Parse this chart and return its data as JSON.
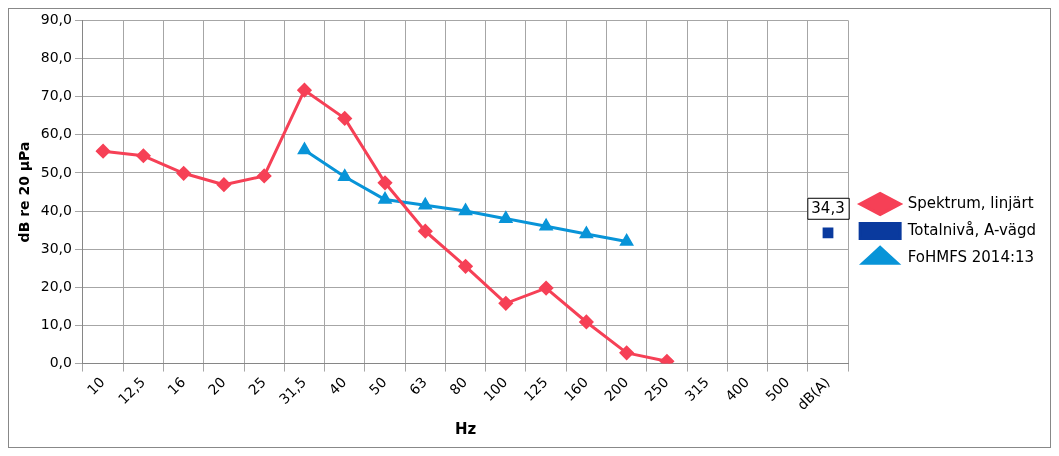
{
  "chart_data": {
    "type": "line",
    "xlabel": "Hz",
    "ylabel": "dB re 20 µPa",
    "categories": [
      "10",
      "12,5",
      "16",
      "20",
      "25",
      "31,5",
      "40",
      "50",
      "63",
      "80",
      "100",
      "125",
      "160",
      "200",
      "250",
      "315",
      "400",
      "500",
      "dB(A)"
    ],
    "series": [
      {
        "name": "Spektrum, linjärt",
        "color": "#f64056",
        "marker": "diamond",
        "values": [
          55.7,
          54.5,
          49.9,
          46.9,
          49.2,
          71.7,
          64.3,
          47.4,
          34.7,
          25.5,
          15.8,
          19.8,
          10.9,
          2.8,
          0.6,
          null,
          null,
          null,
          null
        ]
      },
      {
        "name": "Totalnivå, A-vägd",
        "color": "#0a3a9e",
        "marker": "square",
        "type": "scatter",
        "values": [
          null,
          null,
          null,
          null,
          null,
          null,
          null,
          null,
          null,
          null,
          null,
          null,
          null,
          null,
          null,
          null,
          null,
          null,
          34.3
        ],
        "value_labels": [
          null,
          null,
          null,
          null,
          null,
          null,
          null,
          null,
          null,
          null,
          null,
          null,
          null,
          null,
          null,
          null,
          null,
          null,
          "34,3"
        ]
      },
      {
        "name": "FoHMFS 2014:13",
        "color": "#0894d8",
        "marker": "triangle",
        "values": [
          null,
          null,
          null,
          null,
          null,
          56,
          49,
          43,
          41.5,
          40,
          38,
          36,
          34,
          32,
          null,
          null,
          null,
          null,
          null
        ]
      }
    ],
    "ylim": [
      0,
      90
    ],
    "yticks": [
      {
        "value": 0,
        "label": "0,0"
      },
      {
        "value": 10,
        "label": "10,0"
      },
      {
        "value": 20,
        "label": "20,0"
      },
      {
        "value": 30,
        "label": "30,0"
      },
      {
        "value": 40,
        "label": "40,0"
      },
      {
        "value": 50,
        "label": "50,0"
      },
      {
        "value": 60,
        "label": "60,0"
      },
      {
        "value": 70,
        "label": "70,0"
      },
      {
        "value": 80,
        "label": "80,0"
      },
      {
        "value": 90,
        "label": "90,0"
      }
    ],
    "grid": true,
    "legend": "right"
  }
}
